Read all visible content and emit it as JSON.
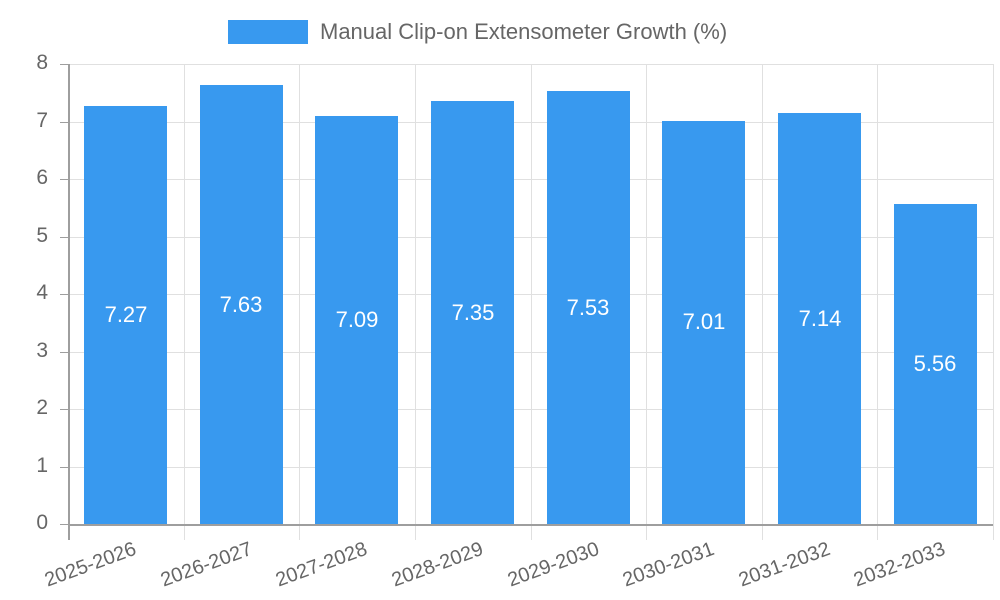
{
  "chart_data": {
    "type": "bar",
    "title": "",
    "legend": [
      {
        "label": "Manual Clip-on Extensometer Growth (%)",
        "color": "#3899ef"
      }
    ],
    "legend_position": "top",
    "categories": [
      "2025-2026",
      "2026-2027",
      "2027-2028",
      "2028-2029",
      "2029-2030",
      "2030-2031",
      "2031-2032",
      "2032-2033"
    ],
    "series": [
      {
        "name": "Manual Clip-on Extensometer Growth (%)",
        "values": [
          7.27,
          7.63,
          7.09,
          7.35,
          7.53,
          7.01,
          7.14,
          5.56
        ],
        "color": "#3899ef"
      }
    ],
    "data_labels": [
      "7.27",
      "7.63",
      "7.09",
      "7.35",
      "7.53",
      "7.01",
      "7.14",
      "5.56"
    ],
    "xlabel": "",
    "ylabel": "",
    "ylim": [
      0,
      8
    ],
    "yticks": [
      "0",
      "1",
      "2",
      "3",
      "4",
      "5",
      "6",
      "7",
      "8"
    ],
    "grid": true,
    "x_tick_rotation": -20
  }
}
